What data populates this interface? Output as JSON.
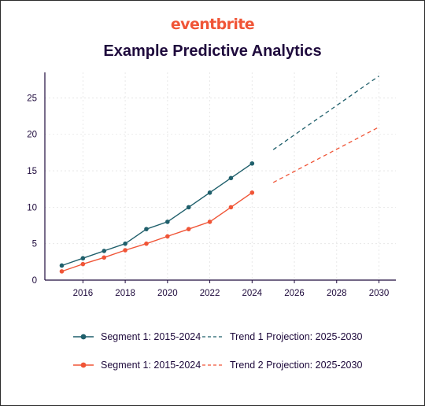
{
  "brand": "eventbrite",
  "colors": {
    "teal": "#1f5f6b",
    "orange": "#f05537",
    "axis": "#1e0a3c",
    "grid": "#e3e3e3"
  },
  "chart_data": {
    "type": "line",
    "title": "Example Predictive Analytics",
    "xlabel": "",
    "ylabel": "",
    "xlim": [
      2014.2,
      2030.8
    ],
    "ylim": [
      0,
      28.5
    ],
    "xticks": [
      2016,
      2018,
      2020,
      2022,
      2024,
      2026,
      2028,
      2030
    ],
    "yticks": [
      0,
      5,
      10,
      15,
      20,
      25
    ],
    "grid": true,
    "legend_position": "bottom",
    "series": [
      {
        "name": "Segment 1: 2015-2024",
        "color": "#1f5f6b",
        "style": "solid-markers",
        "x": [
          2015,
          2016,
          2017,
          2018,
          2019,
          2020,
          2021,
          2022,
          2023,
          2024
        ],
        "y": [
          2,
          3,
          4,
          5,
          7,
          8,
          10,
          12,
          14,
          16
        ]
      },
      {
        "name": "Segment 1: 2015-2024",
        "color": "#f05537",
        "style": "solid-markers",
        "x": [
          2015,
          2016,
          2017,
          2018,
          2019,
          2020,
          2021,
          2022,
          2023,
          2024
        ],
        "y": [
          1.2,
          2.2,
          3.1,
          4.1,
          5,
          6,
          7,
          8,
          10,
          12
        ]
      },
      {
        "name": "Trend 1 Projection: 2025-2030",
        "color": "#1f5f6b",
        "style": "dashed",
        "x": [
          2025,
          2030
        ],
        "y": [
          17.9,
          28
        ]
      },
      {
        "name": "Trend 2 Projection: 2025-2030",
        "color": "#f05537",
        "style": "dashed",
        "x": [
          2025,
          2030
        ],
        "y": [
          13.4,
          21
        ]
      }
    ]
  }
}
